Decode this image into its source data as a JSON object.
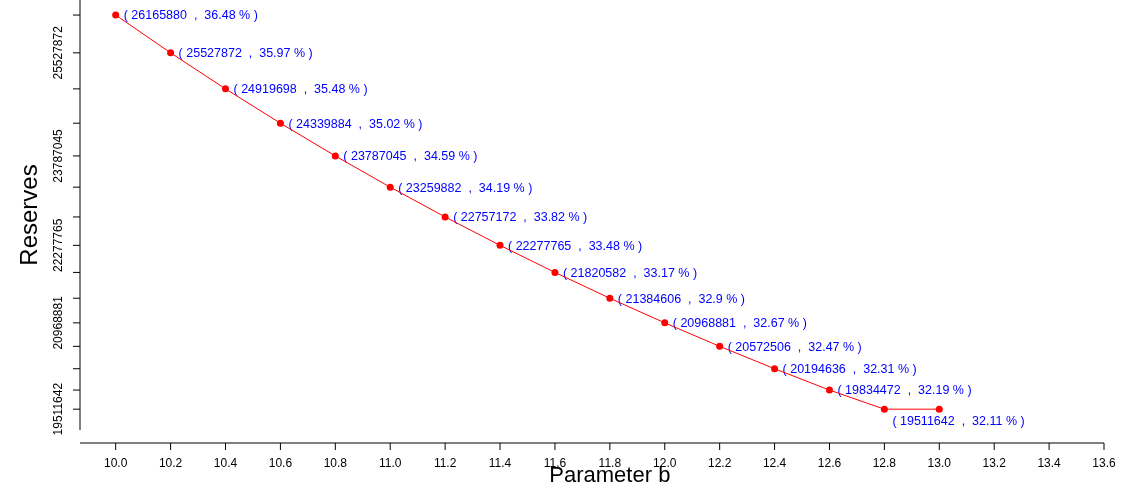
{
  "chart_data": {
    "type": "line",
    "xlabel": "Parameter b",
    "ylabel": "Reserves",
    "x": [
      10.0,
      10.2,
      10.4,
      10.6,
      10.8,
      11.0,
      11.2,
      11.4,
      11.6,
      11.8,
      12.0,
      12.2,
      12.4,
      12.6,
      12.8,
      13.0
    ],
    "series": [
      {
        "color": "#ff0000",
        "values": [
          26165880,
          25527872,
          24919698,
          24339884,
          23787045,
          23259882,
          22757172,
          22277765,
          21820582,
          21384606,
          20968881,
          20572506,
          20194636,
          19834472,
          19511642,
          19511642
        ],
        "value_labels": [
          "( 26165880  ,  36.48 % )",
          "( 25527872  ,  35.97 % )",
          "( 24919698  ,  35.48 % )",
          "( 24339884  ,  35.02 % )",
          "( 23787045  ,  34.59 % )",
          "( 23259882  ,  34.19 % )",
          "( 22757172  ,  33.82 % )",
          "( 22277765  ,  33.48 % )",
          "( 21820582  ,  33.17 % )",
          "( 21384606  ,  32.9 % )",
          "( 20968881  ,  32.67 % )",
          "( 20572506  ,  32.47 % )",
          "( 20194636  ,  32.31 % )",
          "( 19834472  ,  32.19 % )",
          "( 19511642  ,  32.11 % )",
          null
        ]
      }
    ],
    "marker": "circle",
    "line_style": "solid",
    "xlim": [
      9.87,
      13.6
    ],
    "xticks": [
      {
        "value": 10.0,
        "label": "10.0"
      },
      10.2,
      10.4,
      10.6,
      10.8,
      {
        "value": 11.0,
        "label": "11.0"
      },
      11.2,
      11.4,
      11.6,
      11.8,
      {
        "value": 12.0,
        "label": "12.0"
      },
      12.2,
      12.4,
      12.6,
      12.8,
      {
        "value": 13.0,
        "label": "13.0"
      },
      13.2,
      13.4,
      13.6
    ],
    "ylim": [
      19160000,
      26420000
    ],
    "yticks": [
      {
        "value": 19511642,
        "label": "19511642"
      },
      {
        "value": 19834472,
        "label": null
      },
      {
        "value": 20194636,
        "label": null
      },
      {
        "value": 20572506,
        "label": null
      },
      {
        "value": 20968881,
        "label": "20968881"
      },
      {
        "value": 21384606,
        "label": null
      },
      {
        "value": 21820582,
        "label": null
      },
      {
        "value": 22277765,
        "label": "22277765"
      },
      {
        "value": 22757172,
        "label": null
      },
      {
        "value": 23259882,
        "label": null
      },
      {
        "value": 23787045,
        "label": "23787045"
      },
      {
        "value": 24339884,
        "label": null
      },
      {
        "value": 24919698,
        "label": null
      },
      {
        "value": 25527872,
        "label": "25527872"
      },
      {
        "value": 26165880,
        "label": null
      }
    ]
  }
}
